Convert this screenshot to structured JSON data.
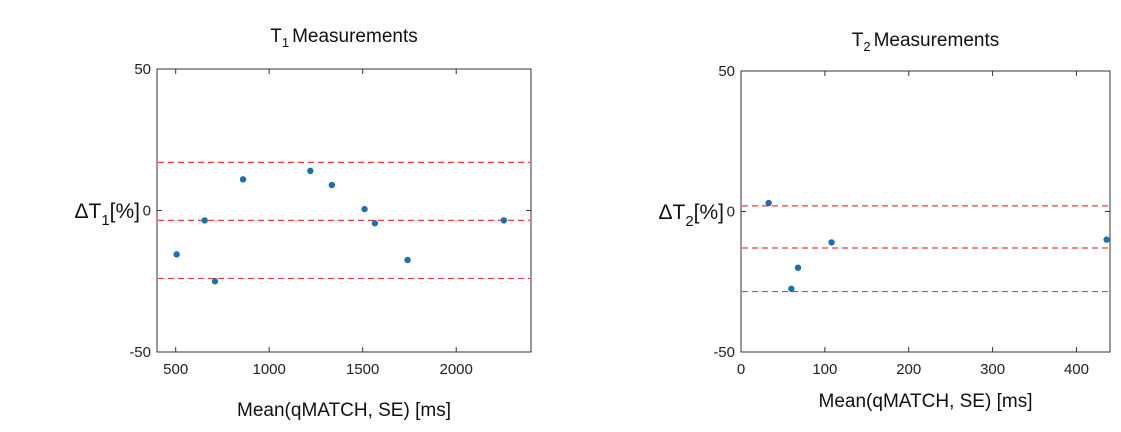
{
  "chart_data": [
    {
      "type": "scatter",
      "title": "T",
      "title_sub": "1",
      "title_rest": "Measurements",
      "xlabel": "Mean(qMATCH, SE) [ms]",
      "ylabel": "ΔT",
      "ylabel_sub": "1",
      "ylabel_rest": "[%]",
      "xlim": [
        400,
        2400
      ],
      "ylim": [
        -50,
        50
      ],
      "xticks": [
        500,
        1000,
        1500,
        2000
      ],
      "yticks": [
        50,
        0,
        -50
      ],
      "grid": false,
      "marker_color": "#1f6db3",
      "line_color": "#e8413f",
      "x": [
        505,
        655,
        710,
        860,
        1220,
        1335,
        1510,
        1565,
        1740,
        2255
      ],
      "y": [
        -15.5,
        -3.5,
        -25,
        11,
        14,
        9,
        0.5,
        -4.5,
        -17.5,
        -3.5
      ],
      "hlines": [
        17,
        -3.5,
        -24
      ]
    },
    {
      "type": "scatter",
      "title": "T",
      "title_sub": "2",
      "title_rest": "Measurements",
      "xlabel": "Mean(qMATCH, SE) [ms]",
      "ylabel": "ΔT",
      "ylabel_sub": "2",
      "ylabel_rest": "[%]",
      "xlim": [
        0,
        440
      ],
      "ylim": [
        -50,
        50
      ],
      "xticks": [
        0,
        100,
        200,
        300,
        400
      ],
      "yticks": [
        50,
        0,
        -50
      ],
      "grid": false,
      "marker_color": "#1f6db3",
      "line_color": "#e8413f",
      "x": [
        33,
        60,
        68,
        108,
        436
      ],
      "y": [
        3,
        -27.5,
        -20,
        -11,
        -10
      ],
      "hlines": [
        2,
        -13,
        -28.5
      ]
    }
  ]
}
